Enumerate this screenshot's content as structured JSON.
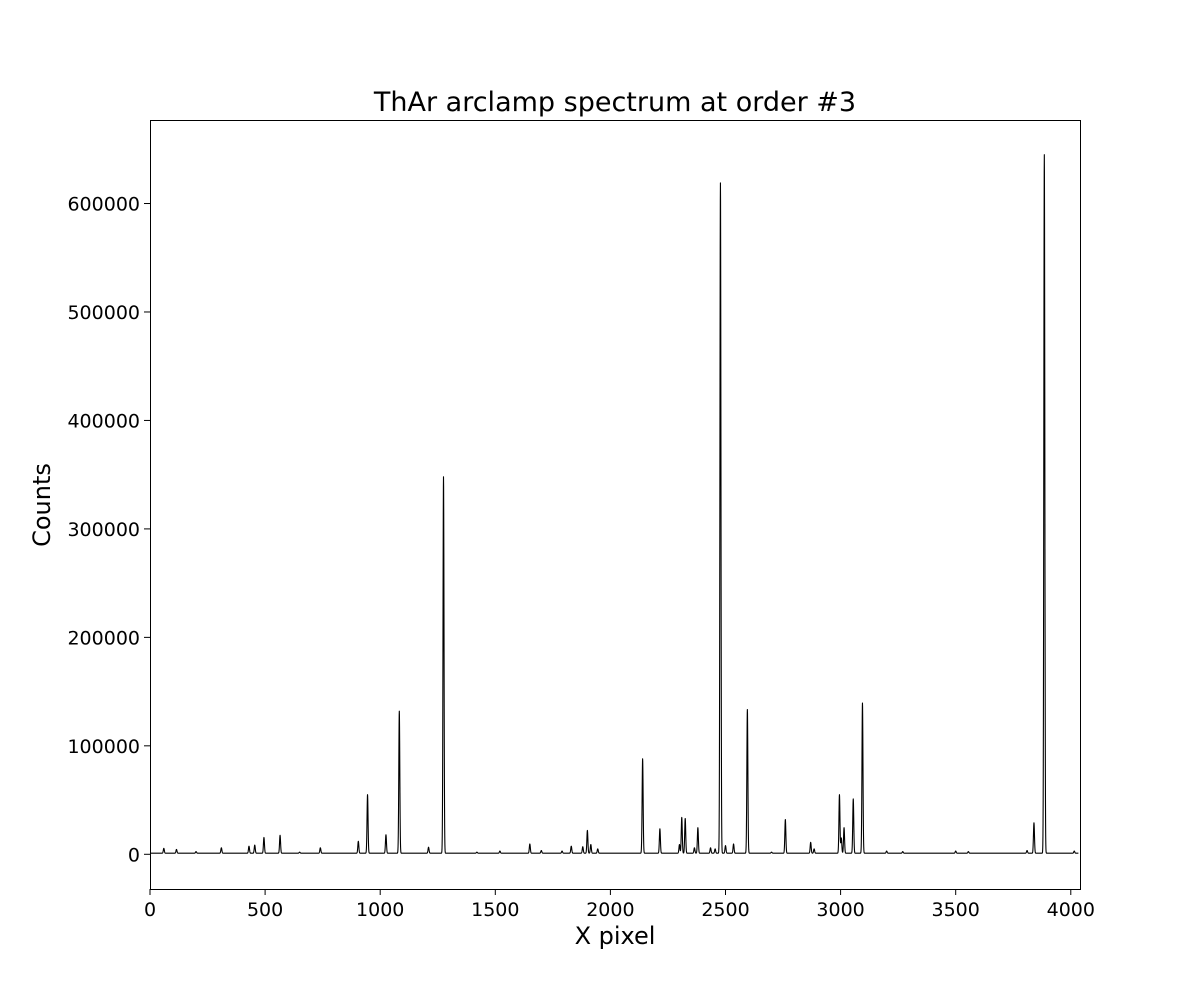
{
  "chart_data": {
    "type": "line",
    "title": "ThAr arclamp spectrum at order #3",
    "xlabel": "X pixel",
    "ylabel": "Counts",
    "xlim": [
      0,
      4040
    ],
    "ylim": [
      -32000,
      677000
    ],
    "xticks": [
      0,
      500,
      1000,
      1500,
      2000,
      2500,
      3000,
      3500,
      4000
    ],
    "yticks": [
      0,
      100000,
      200000,
      300000,
      400000,
      500000,
      600000
    ],
    "grid": false,
    "legend": "none",
    "line_color": "#000000",
    "baseline": 1000,
    "peaks": [
      {
        "x": 60,
        "y": 5500
      },
      {
        "x": 115,
        "y": 4500
      },
      {
        "x": 200,
        "y": 2500
      },
      {
        "x": 310,
        "y": 6000
      },
      {
        "x": 430,
        "y": 7500
      },
      {
        "x": 455,
        "y": 8500
      },
      {
        "x": 495,
        "y": 15500
      },
      {
        "x": 565,
        "y": 17500
      },
      {
        "x": 650,
        "y": 2000
      },
      {
        "x": 740,
        "y": 6000
      },
      {
        "x": 905,
        "y": 12000
      },
      {
        "x": 945,
        "y": 55000
      },
      {
        "x": 1025,
        "y": 18000
      },
      {
        "x": 1083,
        "y": 132000
      },
      {
        "x": 1210,
        "y": 6500
      },
      {
        "x": 1275,
        "y": 348000
      },
      {
        "x": 1420,
        "y": 2000
      },
      {
        "x": 1520,
        "y": 3000
      },
      {
        "x": 1650,
        "y": 9500
      },
      {
        "x": 1700,
        "y": 3500
      },
      {
        "x": 1790,
        "y": 3000
      },
      {
        "x": 1830,
        "y": 7500
      },
      {
        "x": 1880,
        "y": 7000
      },
      {
        "x": 1900,
        "y": 22000
      },
      {
        "x": 1915,
        "y": 9000
      },
      {
        "x": 1945,
        "y": 5000
      },
      {
        "x": 2140,
        "y": 88000
      },
      {
        "x": 2215,
        "y": 23500
      },
      {
        "x": 2300,
        "y": 9000
      },
      {
        "x": 2310,
        "y": 34000
      },
      {
        "x": 2325,
        "y": 33000
      },
      {
        "x": 2365,
        "y": 6000
      },
      {
        "x": 2380,
        "y": 24500
      },
      {
        "x": 2435,
        "y": 6000
      },
      {
        "x": 2455,
        "y": 5000
      },
      {
        "x": 2478,
        "y": 619000
      },
      {
        "x": 2500,
        "y": 8000
      },
      {
        "x": 2535,
        "y": 9500
      },
      {
        "x": 2595,
        "y": 133500
      },
      {
        "x": 2700,
        "y": 2000
      },
      {
        "x": 2760,
        "y": 32000
      },
      {
        "x": 2870,
        "y": 11000
      },
      {
        "x": 2885,
        "y": 5000
      },
      {
        "x": 2995,
        "y": 55000
      },
      {
        "x": 3003,
        "y": 15000
      },
      {
        "x": 3015,
        "y": 24500
      },
      {
        "x": 3055,
        "y": 51000
      },
      {
        "x": 3095,
        "y": 139500
      },
      {
        "x": 3200,
        "y": 3000
      },
      {
        "x": 3270,
        "y": 2500
      },
      {
        "x": 3500,
        "y": 3000
      },
      {
        "x": 3555,
        "y": 2500
      },
      {
        "x": 3810,
        "y": 3500
      },
      {
        "x": 3840,
        "y": 29000
      },
      {
        "x": 3885,
        "y": 645000
      },
      {
        "x": 4015,
        "y": 3000
      }
    ]
  }
}
